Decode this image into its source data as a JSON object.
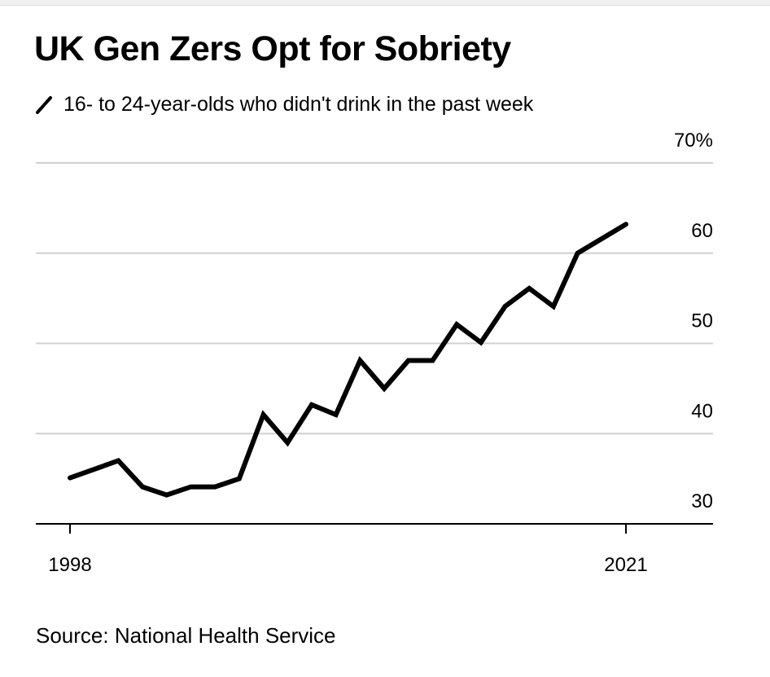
{
  "chart_data": {
    "type": "line",
    "title": "UK Gen Zers Opt for Sobriety",
    "series": [
      {
        "name": "16- to 24-year-olds who didn't drink in the past week",
        "color": "#000000",
        "x": [
          1998,
          2000,
          2001,
          2002,
          2003,
          2004,
          2005,
          2006,
          2007,
          2008,
          2009,
          2010,
          2011,
          2012,
          2013,
          2014,
          2015,
          2016,
          2017,
          2018,
          2019,
          2021
        ],
        "values": [
          35.1,
          37.0,
          34.1,
          33.2,
          34.1,
          34.1,
          35.0,
          42.1,
          39.0,
          43.2,
          42.1,
          48.1,
          45.0,
          48.1,
          48.1,
          52.1,
          50.1,
          54.1,
          56.1,
          54.1,
          60.0,
          63.2
        ]
      }
    ],
    "xlim": [
      1998,
      2021
    ],
    "ylim": [
      30,
      70
    ],
    "x_ticks": [
      "1998",
      "2021"
    ],
    "y_ticks": [
      "30",
      "40",
      "50",
      "60",
      "70%"
    ],
    "ylabel": "",
    "xlabel": "",
    "grid": true,
    "legend_placement": "top-left",
    "source": "Source: National Health Service"
  }
}
